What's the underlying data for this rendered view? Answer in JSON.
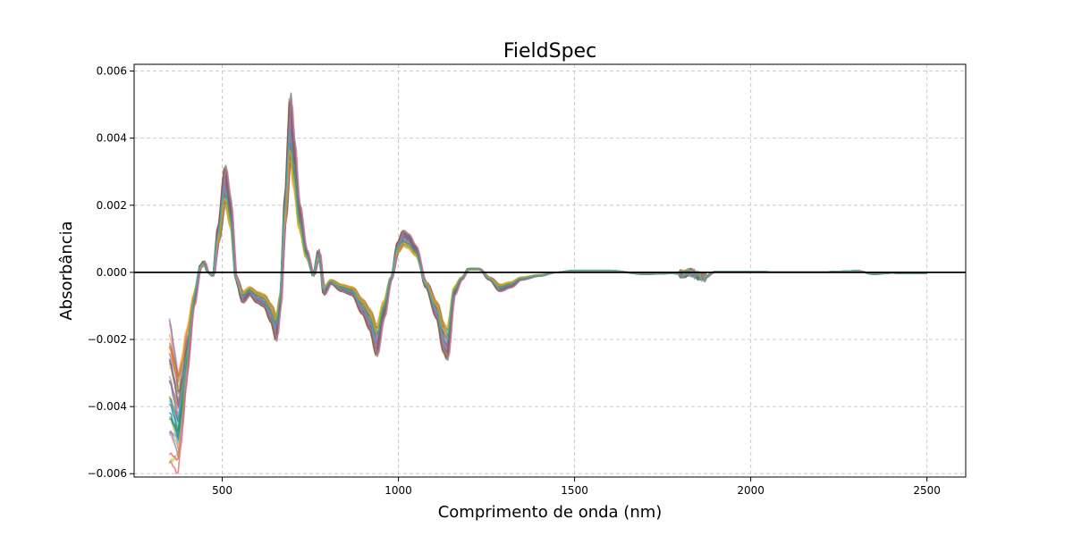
{
  "chart_data": {
    "type": "line",
    "title": "FieldSpec",
    "xlabel": "Comprimento de onda (nm)",
    "ylabel": "Absorbância",
    "xlim": [
      250,
      2610
    ],
    "ylim": [
      -0.0061,
      0.0062
    ],
    "xticks": [
      500,
      1000,
      1500,
      2000,
      2500
    ],
    "yticks": [
      -0.006,
      -0.004,
      -0.002,
      0.0,
      0.002,
      0.004,
      0.006
    ],
    "xtick_labels": [
      "500",
      "1000",
      "1500",
      "2000",
      "2500"
    ],
    "ytick_labels": [
      "−0.006",
      "−0.004",
      "−0.002",
      "0.000",
      "0.002",
      "0.004",
      "0.006"
    ],
    "grid": true,
    "zero_line": true,
    "series_count": 40,
    "base_curve": {
      "x": [
        350,
        365,
        375,
        385,
        400,
        420,
        440,
        450,
        460,
        475,
        490,
        510,
        525,
        540,
        560,
        580,
        600,
        620,
        640,
        655,
        665,
        680,
        695,
        705,
        720,
        740,
        760,
        775,
        790,
        810,
        840,
        870,
        900,
        920,
        940,
        960,
        980,
        1000,
        1015,
        1030,
        1050,
        1080,
        1110,
        1130,
        1140,
        1160,
        1180,
        1200,
        1230,
        1260,
        1290,
        1320,
        1350,
        1400,
        1450,
        1500,
        1600,
        1700,
        1780,
        1810,
        1830,
        1850,
        1870,
        1900,
        2000,
        2100,
        2200,
        2280,
        2300,
        2350,
        2400,
        2450,
        2500
      ],
      "y": [
        -0.0028,
        -0.0042,
        -0.005,
        -0.0038,
        -0.0022,
        -0.0009,
        0.0002,
        0.0003,
        0.0,
        -0.0001,
        0.0012,
        0.0028,
        0.0019,
        -0.0002,
        -0.0008,
        -0.0006,
        -0.0008,
        -0.0009,
        -0.0013,
        -0.0018,
        -0.001,
        0.002,
        0.0047,
        0.0035,
        0.0018,
        0.0006,
        -0.0001,
        0.0006,
        -0.0006,
        -0.0003,
        -0.0005,
        -0.0006,
        -0.0011,
        -0.0015,
        -0.0022,
        -0.0012,
        -0.0002,
        0.0008,
        0.0011,
        0.001,
        0.0007,
        -0.0004,
        -0.0012,
        -0.0021,
        -0.0023,
        -0.0006,
        -0.0002,
        0.0001,
        0.0001,
        -0.0002,
        -0.0005,
        -0.0004,
        -0.0002,
        -0.0001,
        0.0,
        5e-05,
        5e-05,
        -5e-05,
        -3e-05,
        -5e-05,
        0.0,
        -0.0001,
        -0.00015,
        2e-05,
        2e-05,
        1e-05,
        1e-05,
        3e-05,
        5e-05,
        -5e-05,
        -2e-05,
        -3e-05,
        -3e-05
      ]
    },
    "colors": [
      "#1f77b4",
      "#ff7f0e",
      "#2ca02c",
      "#d62728",
      "#9467bd",
      "#8c564b",
      "#e377c2",
      "#7f7f7f",
      "#bcbd22",
      "#17becf"
    ]
  }
}
